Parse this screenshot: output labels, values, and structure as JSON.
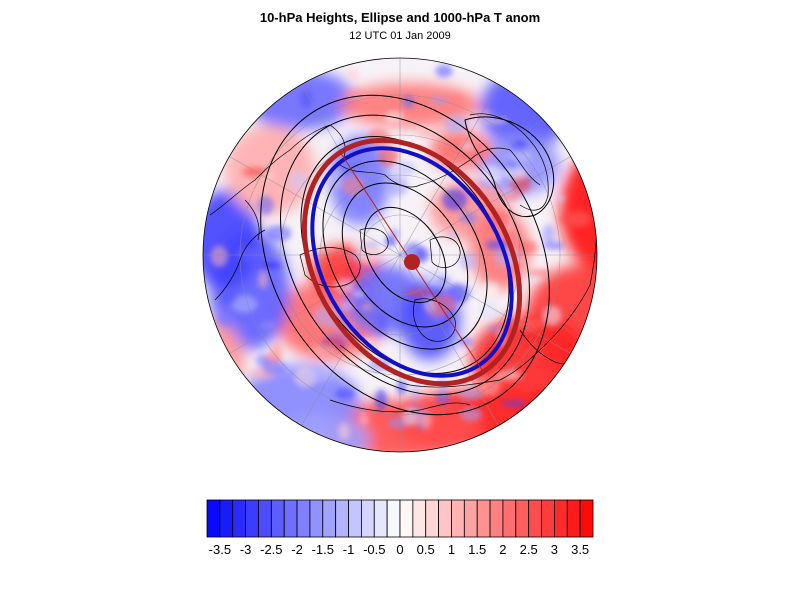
{
  "title": "10-hPa Heights, Ellipse and 1000-hPa T anom",
  "subtitle": "12 UTC 01 Jan 2009",
  "colors": {
    "negative": "#0000ff",
    "positive": "#ff0000",
    "ellipse_outer": "#b22222",
    "ellipse_inner": "#1010c8",
    "center_dot": "#b22222",
    "contour": "#000000"
  },
  "map": {
    "projection": "polar stereographic (north pole)",
    "field": "1000-hPa T anom",
    "contours": "10-hPa Heights"
  },
  "colorbar": {
    "min": -3.75,
    "max": 3.75,
    "step": 0.25,
    "tick_labels": [
      "-3.5",
      "-3",
      "-2.5",
      "-2",
      "-1.5",
      "-1",
      "-0.5",
      "0",
      "0.5",
      "1",
      "1.5",
      "2",
      "2.5",
      "3",
      "3.5"
    ]
  }
}
